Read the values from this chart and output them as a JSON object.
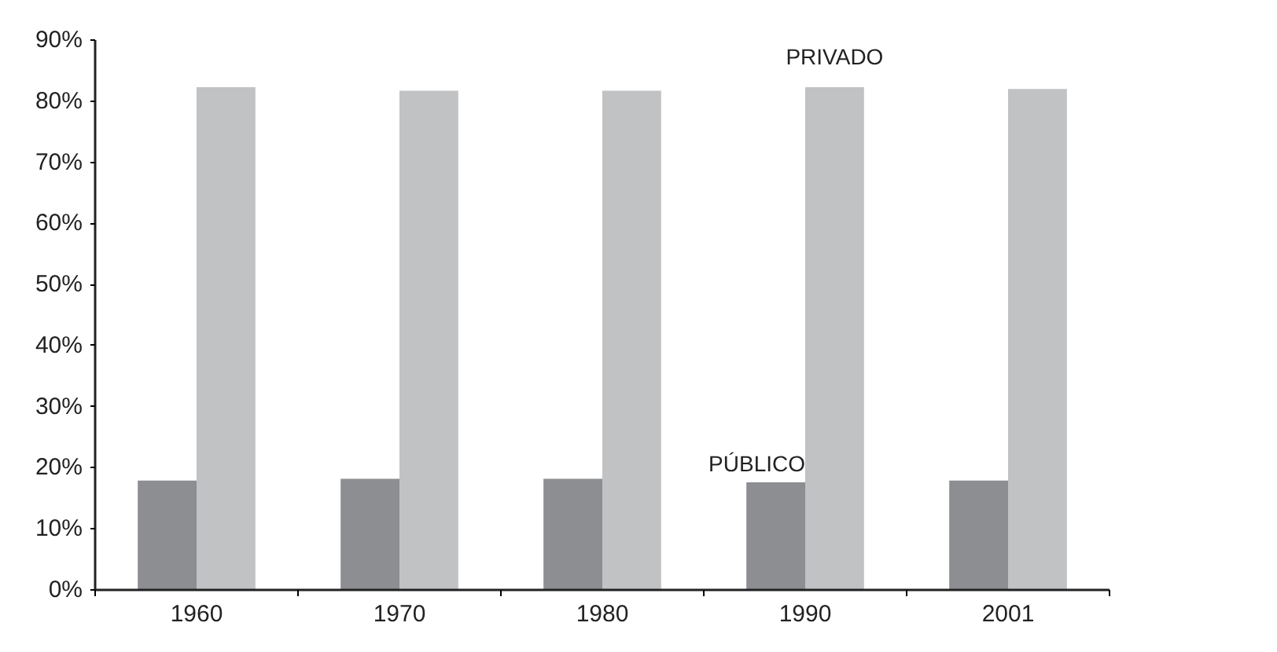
{
  "chart_data": {
    "type": "bar",
    "categories": [
      "1960",
      "1970",
      "1980",
      "1990",
      "2001"
    ],
    "series": [
      {
        "name": "PÚBLICO",
        "color": "#8d8e92",
        "values": [
          17.9,
          18.2,
          18.2,
          17.6,
          17.9
        ]
      },
      {
        "name": "PRIVADO",
        "color": "#c1c2c4",
        "values": [
          82.3,
          81.7,
          81.7,
          82.3,
          82.0
        ]
      }
    ],
    "ylim": [
      0,
      90
    ],
    "yticks": [
      {
        "value": 0,
        "label": "0%"
      },
      {
        "value": 10,
        "label": "10%"
      },
      {
        "value": 20,
        "label": "20%"
      },
      {
        "value": 30,
        "label": "30%"
      },
      {
        "value": 40,
        "label": "40%"
      },
      {
        "value": 50,
        "label": "50%"
      },
      {
        "value": 60,
        "label": "60%"
      },
      {
        "value": 70,
        "label": "70%"
      },
      {
        "value": 80,
        "label": "80%"
      },
      {
        "value": 90,
        "label": "90%"
      }
    ],
    "grid": false
  }
}
